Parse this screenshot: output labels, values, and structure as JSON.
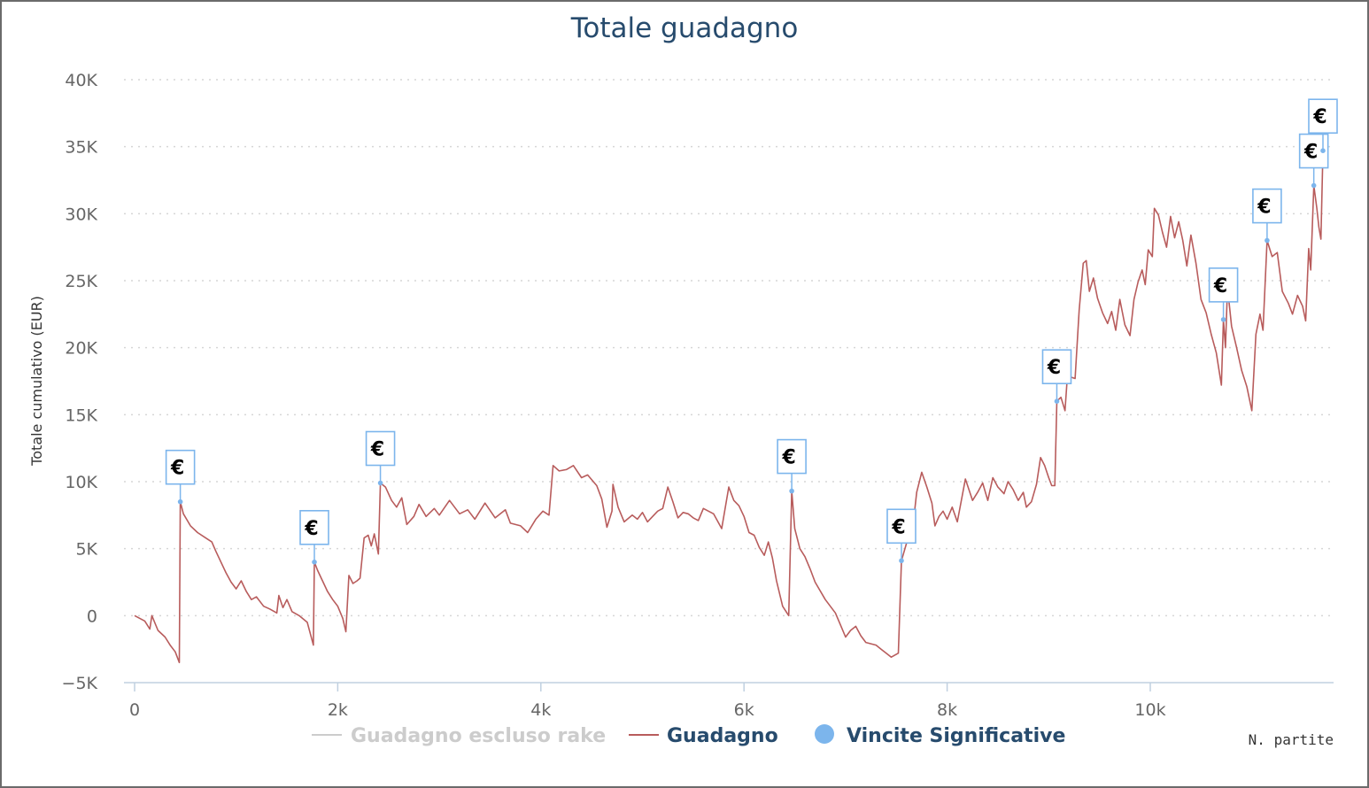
{
  "chart_data": {
    "type": "line",
    "title": "Totale guadagno",
    "xlabel": "N. partite",
    "ylabel": "Totale cumulativo (EUR)",
    "xlim": [
      -200,
      11800
    ],
    "ylim": [
      -5000,
      40000
    ],
    "x_ticks": [
      {
        "value": 0,
        "label": "0"
      },
      {
        "value": 2000,
        "label": "2k"
      },
      {
        "value": 4000,
        "label": "4k"
      },
      {
        "value": 6000,
        "label": "6k"
      },
      {
        "value": 8000,
        "label": "8k"
      },
      {
        "value": 10000,
        "label": "10k"
      }
    ],
    "y_ticks": [
      {
        "value": -5000,
        "label": "−5K"
      },
      {
        "value": 0,
        "label": "0"
      },
      {
        "value": 5000,
        "label": "5K"
      },
      {
        "value": 10000,
        "label": "10K"
      },
      {
        "value": 15000,
        "label": "15K"
      },
      {
        "value": 20000,
        "label": "20K"
      },
      {
        "value": 25000,
        "label": "25K"
      },
      {
        "value": 30000,
        "label": "30K"
      },
      {
        "value": 35000,
        "label": "35K"
      },
      {
        "value": 40000,
        "label": "40K"
      }
    ],
    "grid": true,
    "legend_position": "bottom",
    "series": [
      {
        "name": "Guadagno escluso rake",
        "color": "#cccccc",
        "hidden": true,
        "points": []
      },
      {
        "name": "Guadagno",
        "color": "#b85c5c",
        "points": [
          [
            0,
            0
          ],
          [
            100,
            -400
          ],
          [
            150,
            -1000
          ],
          [
            170,
            0
          ],
          [
            230,
            -1100
          ],
          [
            300,
            -1600
          ],
          [
            350,
            -2200
          ],
          [
            400,
            -2700
          ],
          [
            440,
            -3500
          ],
          [
            450,
            8500
          ],
          [
            480,
            7600
          ],
          [
            550,
            6700
          ],
          [
            620,
            6200
          ],
          [
            700,
            5800
          ],
          [
            760,
            5500
          ],
          [
            800,
            4800
          ],
          [
            850,
            4000
          ],
          [
            900,
            3200
          ],
          [
            950,
            2500
          ],
          [
            1000,
            2000
          ],
          [
            1050,
            2600
          ],
          [
            1100,
            1800
          ],
          [
            1150,
            1200
          ],
          [
            1200,
            1400
          ],
          [
            1270,
            700
          ],
          [
            1330,
            500
          ],
          [
            1400,
            200
          ],
          [
            1420,
            1500
          ],
          [
            1460,
            600
          ],
          [
            1500,
            1200
          ],
          [
            1550,
            300
          ],
          [
            1620,
            0
          ],
          [
            1700,
            -500
          ],
          [
            1760,
            -2200
          ],
          [
            1770,
            4000
          ],
          [
            1800,
            3400
          ],
          [
            1850,
            2600
          ],
          [
            1900,
            1800
          ],
          [
            1950,
            1200
          ],
          [
            2000,
            700
          ],
          [
            2050,
            -200
          ],
          [
            2080,
            -1200
          ],
          [
            2110,
            3000
          ],
          [
            2150,
            2400
          ],
          [
            2190,
            2600
          ],
          [
            2220,
            2800
          ],
          [
            2260,
            5800
          ],
          [
            2300,
            6000
          ],
          [
            2330,
            5200
          ],
          [
            2360,
            6100
          ],
          [
            2400,
            4600
          ],
          [
            2420,
            9900
          ],
          [
            2470,
            9600
          ],
          [
            2530,
            8600
          ],
          [
            2580,
            8100
          ],
          [
            2630,
            8800
          ],
          [
            2680,
            6800
          ],
          [
            2750,
            7400
          ],
          [
            2800,
            8300
          ],
          [
            2870,
            7400
          ],
          [
            2950,
            8000
          ],
          [
            3000,
            7500
          ],
          [
            3100,
            8600
          ],
          [
            3200,
            7600
          ],
          [
            3280,
            7900
          ],
          [
            3350,
            7200
          ],
          [
            3450,
            8400
          ],
          [
            3550,
            7300
          ],
          [
            3650,
            7900
          ],
          [
            3700,
            6900
          ],
          [
            3800,
            6700
          ],
          [
            3870,
            6200
          ],
          [
            3950,
            7200
          ],
          [
            4020,
            7800
          ],
          [
            4080,
            7500
          ],
          [
            4120,
            11200
          ],
          [
            4180,
            10800
          ],
          [
            4250,
            10900
          ],
          [
            4320,
            11200
          ],
          [
            4400,
            10300
          ],
          [
            4460,
            10500
          ],
          [
            4550,
            9700
          ],
          [
            4600,
            8700
          ],
          [
            4650,
            6600
          ],
          [
            4700,
            7800
          ],
          [
            4710,
            9800
          ],
          [
            4760,
            8100
          ],
          [
            4820,
            7000
          ],
          [
            4900,
            7500
          ],
          [
            4950,
            7200
          ],
          [
            5000,
            7700
          ],
          [
            5050,
            7000
          ],
          [
            5100,
            7400
          ],
          [
            5150,
            7800
          ],
          [
            5200,
            8000
          ],
          [
            5250,
            9600
          ],
          [
            5300,
            8500
          ],
          [
            5350,
            7300
          ],
          [
            5400,
            7700
          ],
          [
            5450,
            7600
          ],
          [
            5500,
            7300
          ],
          [
            5550,
            7100
          ],
          [
            5600,
            8000
          ],
          [
            5700,
            7600
          ],
          [
            5780,
            6500
          ],
          [
            5850,
            9600
          ],
          [
            5900,
            8600
          ],
          [
            5950,
            8200
          ],
          [
            6000,
            7400
          ],
          [
            6050,
            6200
          ],
          [
            6100,
            6000
          ],
          [
            6150,
            5100
          ],
          [
            6200,
            4500
          ],
          [
            6240,
            5500
          ],
          [
            6280,
            4300
          ],
          [
            6320,
            2600
          ],
          [
            6380,
            700
          ],
          [
            6440,
            0
          ],
          [
            6470,
            9300
          ],
          [
            6500,
            6500
          ],
          [
            6550,
            5000
          ],
          [
            6600,
            4400
          ],
          [
            6650,
            3500
          ],
          [
            6700,
            2500
          ],
          [
            6800,
            1200
          ],
          [
            6900,
            200
          ],
          [
            6950,
            -700
          ],
          [
            7000,
            -1600
          ],
          [
            7050,
            -1100
          ],
          [
            7100,
            -800
          ],
          [
            7150,
            -1500
          ],
          [
            7200,
            -2000
          ],
          [
            7300,
            -2200
          ],
          [
            7350,
            -2500
          ],
          [
            7400,
            -2800
          ],
          [
            7450,
            -3100
          ],
          [
            7520,
            -2800
          ],
          [
            7550,
            4100
          ],
          [
            7600,
            5400
          ],
          [
            7650,
            5800
          ],
          [
            7700,
            9200
          ],
          [
            7750,
            10700
          ],
          [
            7800,
            9600
          ],
          [
            7850,
            8400
          ],
          [
            7880,
            6700
          ],
          [
            7920,
            7400
          ],
          [
            7960,
            7800
          ],
          [
            8000,
            7200
          ],
          [
            8050,
            8100
          ],
          [
            8100,
            7000
          ],
          [
            8180,
            10200
          ],
          [
            8250,
            8600
          ],
          [
            8300,
            9200
          ],
          [
            8350,
            9900
          ],
          [
            8400,
            8600
          ],
          [
            8450,
            10300
          ],
          [
            8500,
            9600
          ],
          [
            8560,
            9100
          ],
          [
            8600,
            10000
          ],
          [
            8650,
            9400
          ],
          [
            8700,
            8600
          ],
          [
            8750,
            9200
          ],
          [
            8780,
            8100
          ],
          [
            8830,
            8500
          ],
          [
            8880,
            9800
          ],
          [
            8920,
            11800
          ],
          [
            8960,
            11200
          ],
          [
            9000,
            10300
          ],
          [
            9030,
            9700
          ],
          [
            9060,
            9700
          ],
          [
            9080,
            16000
          ],
          [
            9120,
            16300
          ],
          [
            9160,
            15300
          ],
          [
            9180,
            17400
          ],
          [
            9220,
            17800
          ],
          [
            9260,
            17700
          ],
          [
            9300,
            22800
          ],
          [
            9340,
            26300
          ],
          [
            9370,
            26500
          ],
          [
            9400,
            24200
          ],
          [
            9440,
            25200
          ],
          [
            9480,
            23700
          ],
          [
            9530,
            22600
          ],
          [
            9580,
            21800
          ],
          [
            9620,
            22700
          ],
          [
            9660,
            21300
          ],
          [
            9700,
            23600
          ],
          [
            9750,
            21700
          ],
          [
            9800,
            20900
          ],
          [
            9840,
            23600
          ],
          [
            9880,
            24900
          ],
          [
            9920,
            25800
          ],
          [
            9950,
            24700
          ],
          [
            9980,
            27300
          ],
          [
            10020,
            26800
          ],
          [
            10040,
            30400
          ],
          [
            10080,
            29900
          ],
          [
            10120,
            28600
          ],
          [
            10160,
            27500
          ],
          [
            10200,
            29800
          ],
          [
            10240,
            28200
          ],
          [
            10280,
            29400
          ],
          [
            10320,
            28000
          ],
          [
            10360,
            26100
          ],
          [
            10400,
            28400
          ],
          [
            10450,
            26300
          ],
          [
            10500,
            23600
          ],
          [
            10550,
            22600
          ],
          [
            10600,
            21000
          ],
          [
            10650,
            19600
          ],
          [
            10700,
            17200
          ],
          [
            10720,
            22100
          ],
          [
            10740,
            20000
          ],
          [
            10760,
            24500
          ],
          [
            10800,
            21600
          ],
          [
            10850,
            20000
          ],
          [
            10900,
            18300
          ],
          [
            10950,
            17100
          ],
          [
            11000,
            15300
          ],
          [
            11040,
            21000
          ],
          [
            11080,
            22500
          ],
          [
            11110,
            21300
          ],
          [
            11150,
            28000
          ],
          [
            11200,
            26800
          ],
          [
            11250,
            27100
          ],
          [
            11300,
            24200
          ],
          [
            11360,
            23300
          ],
          [
            11400,
            22500
          ],
          [
            11450,
            23900
          ],
          [
            11500,
            23100
          ],
          [
            11530,
            22000
          ],
          [
            11560,
            27400
          ],
          [
            11580,
            25800
          ],
          [
            11610,
            32100
          ],
          [
            11640,
            30400
          ],
          [
            11660,
            29000
          ],
          [
            11680,
            28100
          ],
          [
            11700,
            34700
          ]
        ]
      },
      {
        "name": "Vincite Significative",
        "color": "#7cb5ec",
        "type": "flags",
        "flag_label": "€",
        "points": [
          [
            450,
            8500
          ],
          [
            1770,
            4000
          ],
          [
            2420,
            9900
          ],
          [
            6470,
            9300
          ],
          [
            7550,
            4100
          ],
          [
            9080,
            16000
          ],
          [
            10720,
            22100
          ],
          [
            11150,
            28000
          ],
          [
            11610,
            32100
          ],
          [
            11700,
            34700
          ]
        ]
      }
    ]
  }
}
